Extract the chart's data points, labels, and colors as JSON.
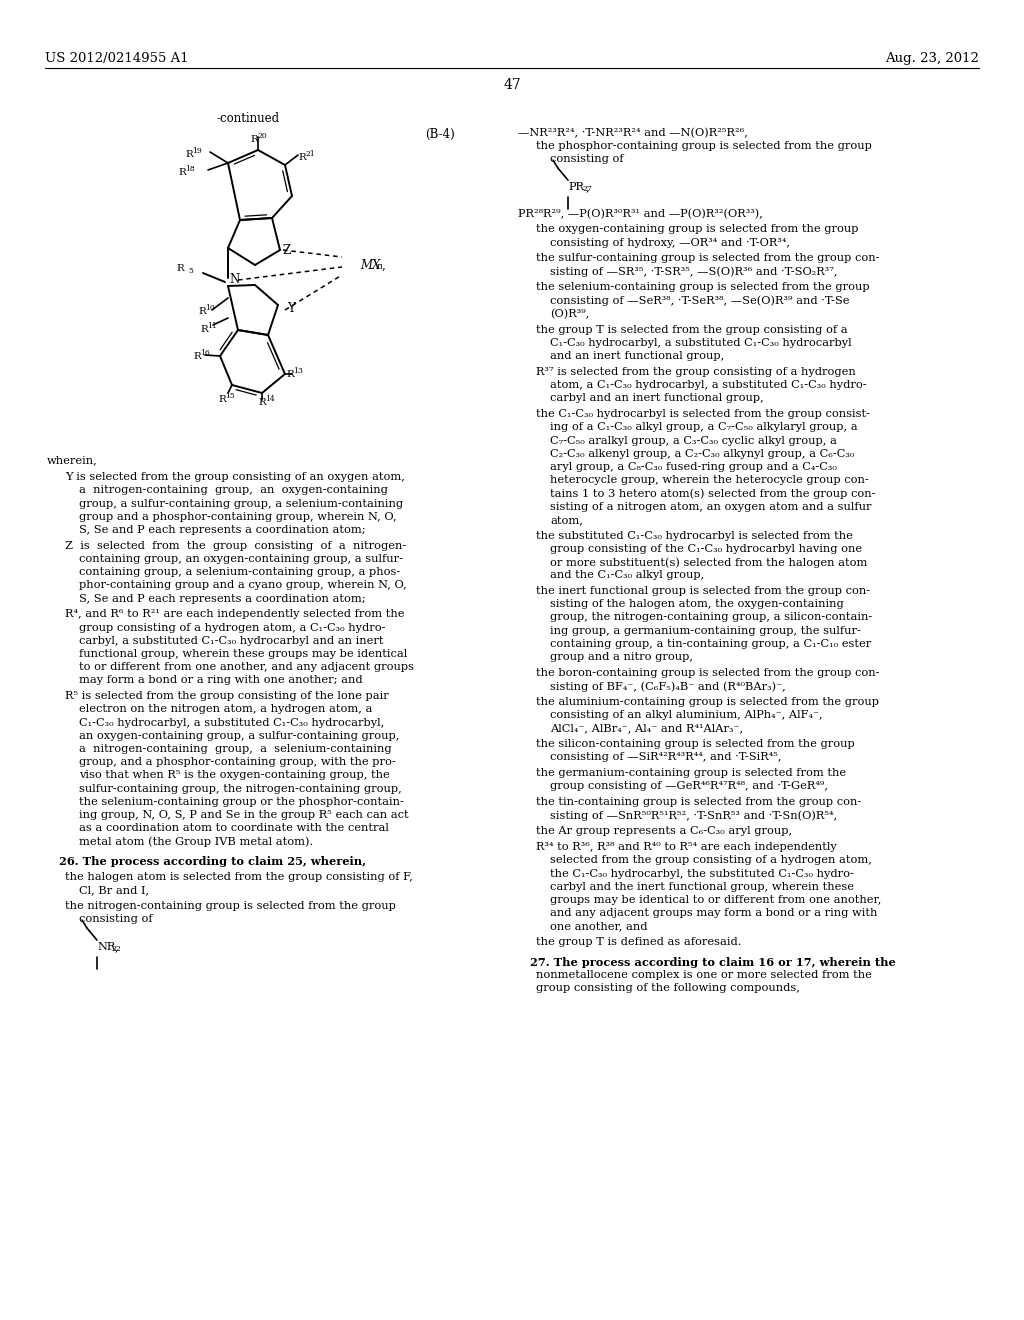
{
  "bg": "#ffffff",
  "page_num": "47",
  "patent_id": "US 2012/0214955 A1",
  "patent_date": "Aug. 23, 2012"
}
